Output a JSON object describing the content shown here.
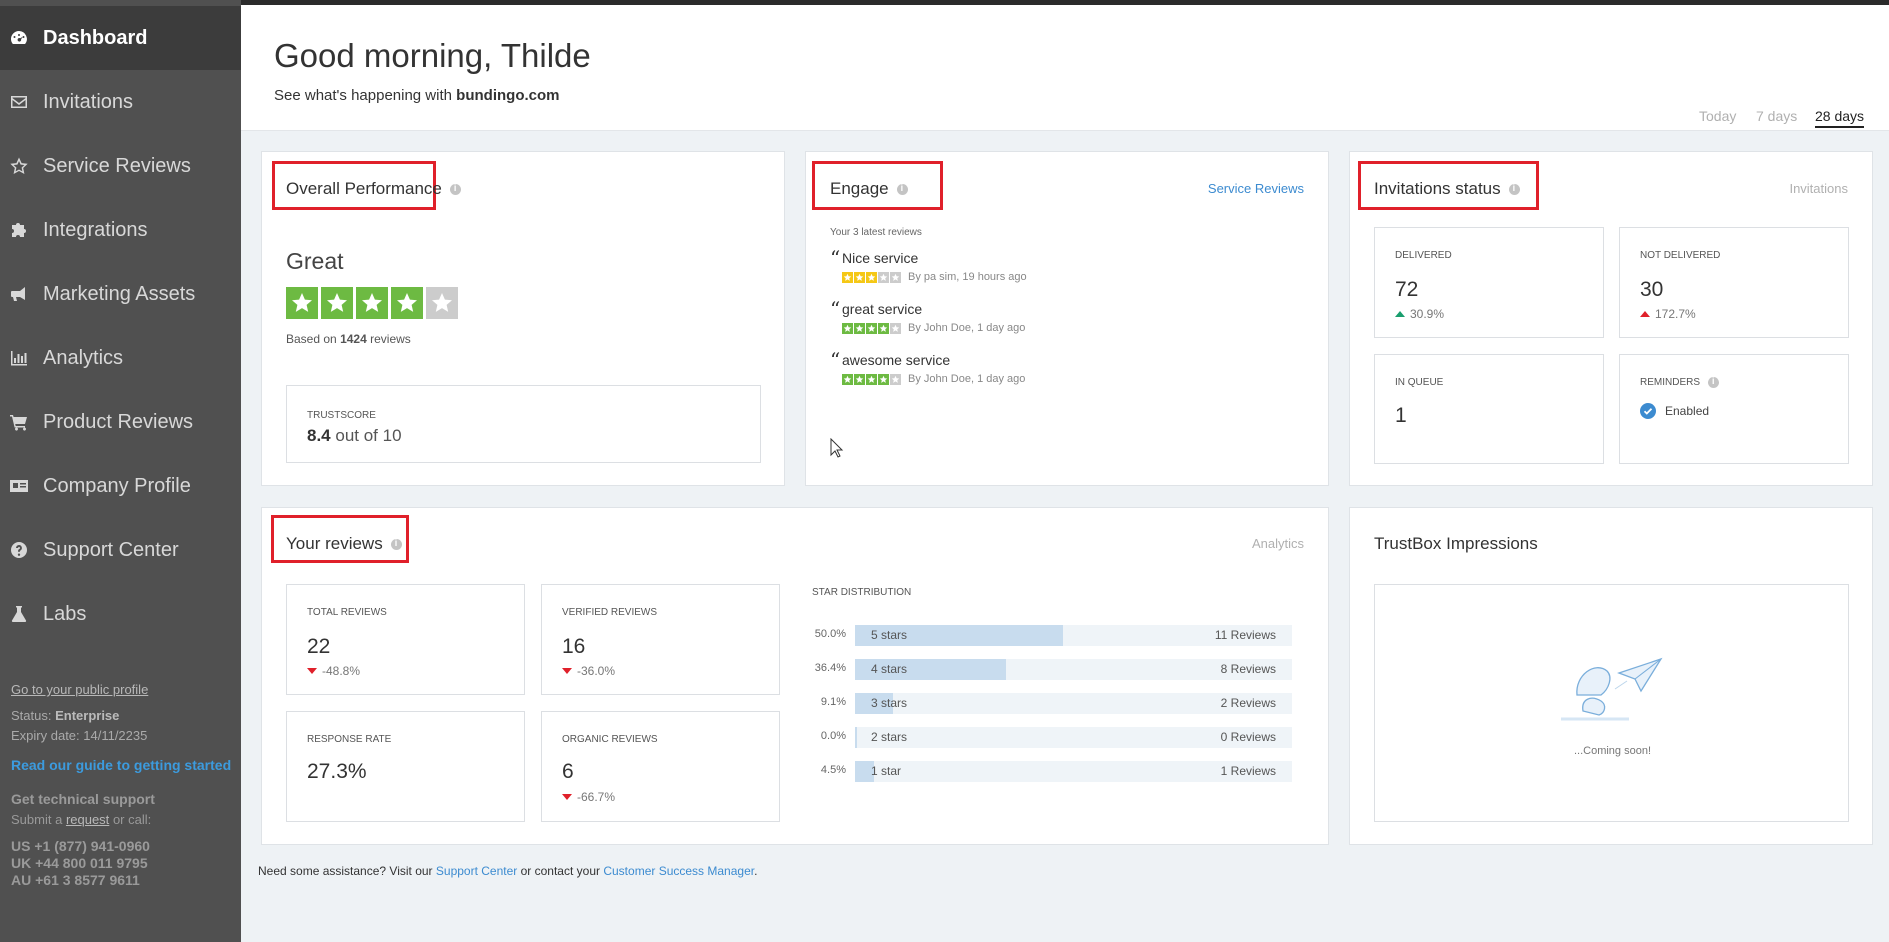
{
  "sidebar": {
    "items": [
      {
        "label": "Dashboard",
        "icon": "dashboard-icon"
      },
      {
        "label": "Invitations",
        "icon": "envelope-icon"
      },
      {
        "label": "Service Reviews",
        "icon": "star-outline-icon"
      },
      {
        "label": "Integrations",
        "icon": "puzzle-icon"
      },
      {
        "label": "Marketing Assets",
        "icon": "bullhorn-icon"
      },
      {
        "label": "Analytics",
        "icon": "bar-chart-icon"
      },
      {
        "label": "Product Reviews",
        "icon": "cart-icon"
      },
      {
        "label": "Company Profile",
        "icon": "id-card-icon"
      },
      {
        "label": "Support Center",
        "icon": "question-circle-icon"
      },
      {
        "label": "Labs",
        "icon": "flask-icon"
      }
    ],
    "public_profile_link": "Go to your public profile",
    "status_label": "Status:",
    "status_value": "Enterprise",
    "expiry": "Expiry date: 14/11/2235",
    "guide_link": "Read our guide to getting started",
    "support_title": "Get technical support",
    "support_prefix": "Submit a",
    "support_request": "request",
    "support_suffix": "or call:",
    "phones": [
      "US +1 (877) 941-0960",
      "UK +44 800 011 9795",
      "AU +61 3 8577 9611"
    ]
  },
  "header": {
    "greeting": "Good morning, Thilde",
    "sub_prefix": "See what's happening with",
    "sub_domain": "bundingo.com",
    "ranges": [
      "Today",
      "7 days",
      "28 days"
    ],
    "active_range": "28 days"
  },
  "overall": {
    "title": "Overall Performance",
    "rating_word": "Great",
    "stars": 4,
    "based_prefix": "Based on",
    "based_count": "1424",
    "based_suffix": "reviews",
    "trustscore_label": "TRUSTSCORE",
    "trustscore_value": "8.4",
    "trustscore_suffix": "out of 10",
    "star_color": "#6dba42",
    "empty_star_color": "#cccccc"
  },
  "engage": {
    "title": "Engage",
    "link": "Service Reviews",
    "latest_label": "Your 3 latest reviews",
    "reviews": [
      {
        "title": "Nice service",
        "stars": 3,
        "color": "#f5c816",
        "meta": "By pa sim, 19 hours ago"
      },
      {
        "title": "great service",
        "stars": 4,
        "color": "#6dba42",
        "meta": "By John Doe, 1 day ago"
      },
      {
        "title": "awesome service",
        "stars": 4,
        "color": "#6dba42",
        "meta": "By John Doe, 1 day ago"
      }
    ]
  },
  "invitations": {
    "title": "Invitations status",
    "link": "Invitations",
    "delivered_label": "DELIVERED",
    "delivered_value": "72",
    "delivered_delta": "30.9%",
    "not_delivered_label": "NOT DELIVERED",
    "not_delivered_value": "30",
    "not_delivered_delta": "172.7%",
    "queue_label": "IN QUEUE",
    "queue_value": "1",
    "reminders_label": "REMINDERS",
    "reminders_value": "Enabled"
  },
  "your_reviews": {
    "title": "Your reviews",
    "link": "Analytics",
    "total_label": "TOTAL REVIEWS",
    "total_value": "22",
    "total_delta": "-48.8%",
    "verified_label": "VERIFIED REVIEWS",
    "verified_value": "16",
    "verified_delta": "-36.0%",
    "response_label": "RESPONSE RATE",
    "response_value": "27.3%",
    "organic_label": "ORGANIC REVIEWS",
    "organic_value": "6",
    "organic_delta": "-66.7%",
    "dist_label": "STAR DISTRIBUTION",
    "distribution": [
      {
        "pct": "50.0%",
        "fraction": 0.5,
        "name": "5 stars",
        "count": "11 Reviews"
      },
      {
        "pct": "36.4%",
        "fraction": 0.364,
        "name": "4 stars",
        "count": "8 Reviews"
      },
      {
        "pct": "9.1%",
        "fraction": 0.091,
        "name": "3 stars",
        "count": "2 Reviews"
      },
      {
        "pct": "0.0%",
        "fraction": 0.0,
        "name": "2 stars",
        "count": "0 Reviews"
      },
      {
        "pct": "4.5%",
        "fraction": 0.045,
        "name": "1 star",
        "count": "1 Reviews"
      }
    ]
  },
  "trustbox": {
    "title": "TrustBox Impressions",
    "coming": "...Coming soon!"
  },
  "footer": {
    "prefix": "Need some assistance? Visit our",
    "support_link": "Support Center",
    "middle": "or contact your",
    "csm_link": "Customer Success Manager",
    "suffix": "."
  }
}
